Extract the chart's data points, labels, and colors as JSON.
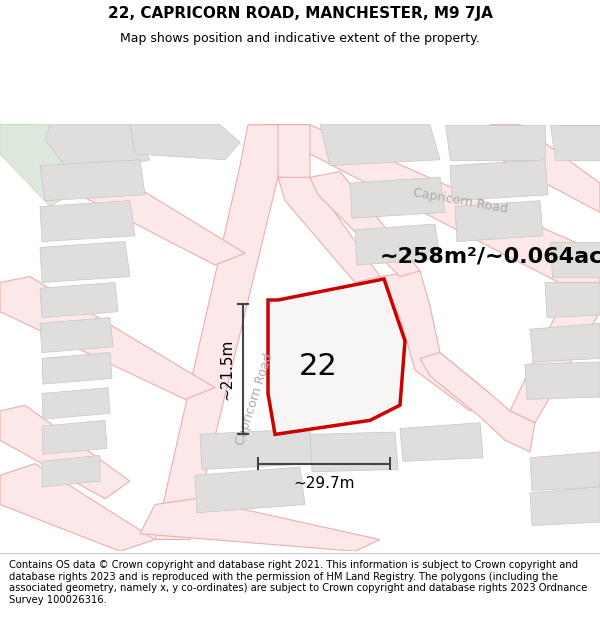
{
  "title_line1": "22, CAPRICORN ROAD, MANCHESTER, M9 7JA",
  "title_line2": "Map shows position and indicative extent of the property.",
  "footer_text": "Contains OS data © Crown copyright and database right 2021. This information is subject to Crown copyright and database rights 2023 and is reproduced with the permission of HM Land Registry. The polygons (including the associated geometry, namely x, y co-ordinates) are subject to Crown copyright and database rights 2023 Ordnance Survey 100026316.",
  "area_label": "~258m²/~0.064ac.",
  "number_label": "22",
  "dim_width_label": "~29.7m",
  "dim_height_label": "~21.5m",
  "map_bg": "#f5f3f0",
  "road_fill": "#fce8e8",
  "road_edge": "#e8b0b0",
  "block_fill": "#e0dedd",
  "block_edge": "#c8c4c2",
  "plot_fill": "#f8f6f4",
  "plot_edge": "#cc0000",
  "dim_color": "#444444",
  "road_label_color": "#aaaaaa",
  "green_fill": "#ddeedd",
  "title_fontsize": 11,
  "subtitle_fontsize": 9,
  "footer_fontsize": 7.2,
  "area_fontsize": 16,
  "number_fontsize": 22,
  "dim_fontsize": 11,
  "road_label_fontsize": 9
}
